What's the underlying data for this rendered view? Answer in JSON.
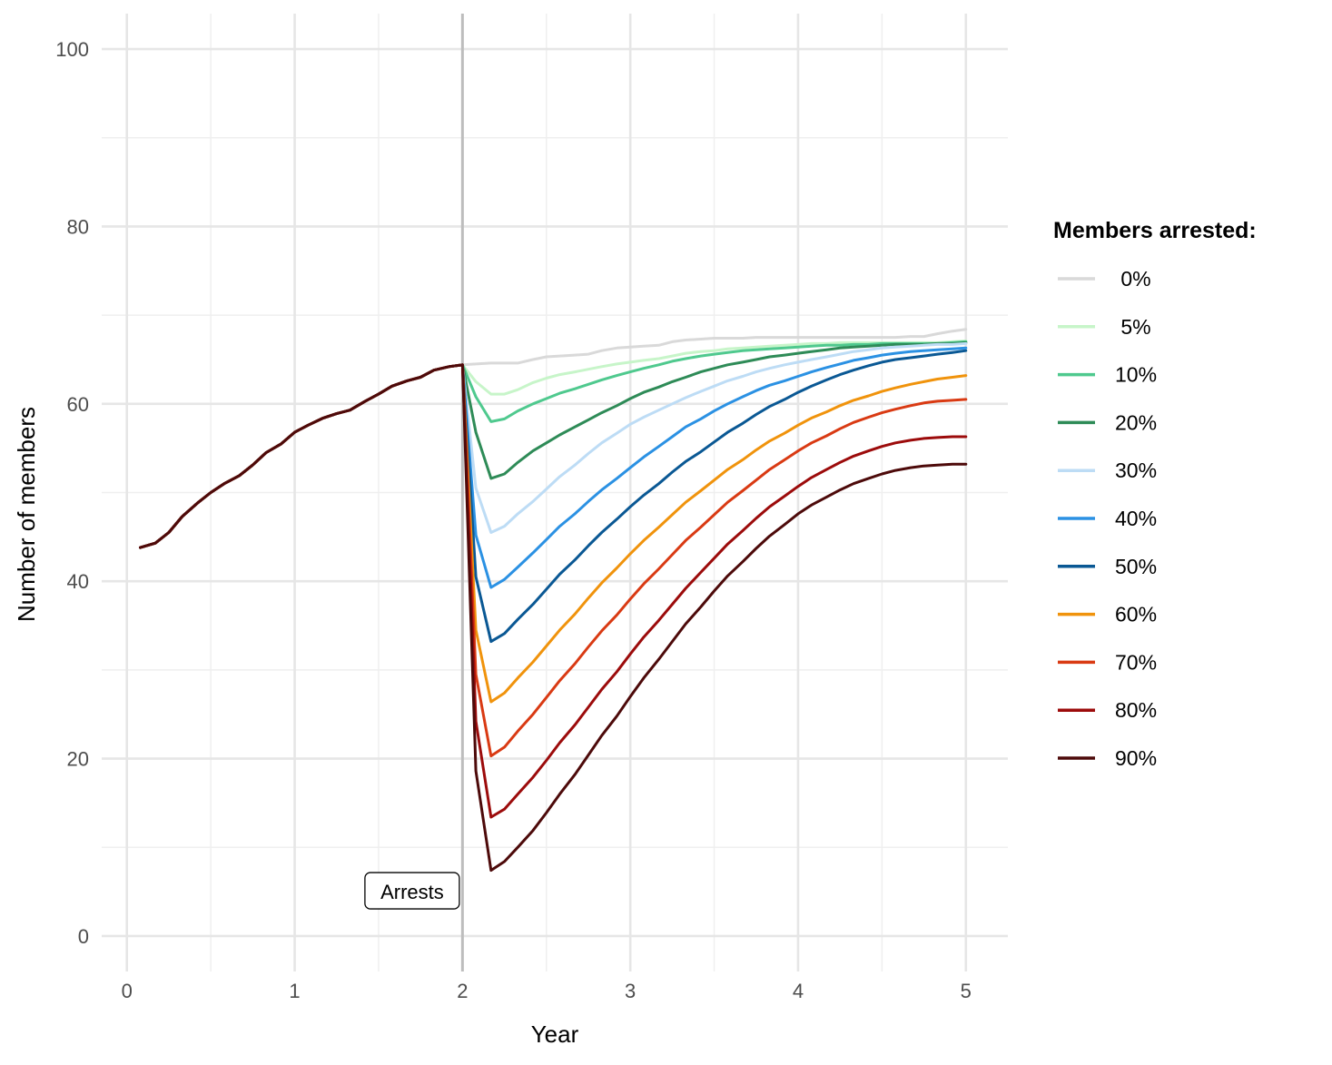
{
  "chart_data": {
    "type": "line",
    "title": "",
    "xlabel": "Year",
    "ylabel": "Number of members",
    "xlim": [
      -0.15,
      5.25
    ],
    "ylim": [
      -4,
      104
    ],
    "x_ticks": [
      0,
      1,
      2,
      3,
      4,
      5
    ],
    "y_ticks": [
      0,
      20,
      40,
      60,
      80,
      100
    ],
    "x_tick_labels": [
      "0",
      "1",
      "2",
      "3",
      "4",
      "5"
    ],
    "y_tick_labels": [
      "0",
      "20",
      "40",
      "60",
      "80",
      "100"
    ],
    "grid": true,
    "legend_position": "right",
    "legend_title": "Members arrested:",
    "vline": {
      "x": 2.0,
      "color": "#bdbdbd"
    },
    "annotation": {
      "text": "Arrests",
      "x": 1.7,
      "y": 5
    },
    "pre_arrest": {
      "x": [
        0.08,
        0.17,
        0.25,
        0.33,
        0.42,
        0.5,
        0.58,
        0.67,
        0.75,
        0.83,
        0.92,
        1.0,
        1.08,
        1.17,
        1.25,
        1.33,
        1.42,
        1.5,
        1.58,
        1.67,
        1.75,
        1.83,
        1.92,
        2.0
      ],
      "y": [
        43.8,
        44.3,
        45.5,
        47.3,
        48.8,
        50.0,
        51.0,
        51.9,
        53.1,
        54.5,
        55.5,
        56.8,
        57.6,
        58.4,
        58.9,
        59.3,
        60.3,
        61.1,
        62.0,
        62.6,
        63.0,
        63.8,
        64.2,
        64.4
      ]
    },
    "post_arrest_x": [
      2.0,
      2.08,
      2.17,
      2.25,
      2.33,
      2.42,
      2.5,
      2.58,
      2.67,
      2.75,
      2.83,
      2.92,
      3.0,
      3.08,
      3.17,
      3.25,
      3.33,
      3.42,
      3.5,
      3.58,
      3.67,
      3.75,
      3.83,
      3.92,
      4.0,
      4.08,
      4.17,
      4.25,
      4.33,
      4.42,
      4.5,
      4.58,
      4.67,
      4.75,
      4.83,
      4.92,
      5.0
    ],
    "series": [
      {
        "name": " 0%",
        "color": "#d9d9d9",
        "values": [
          64.4,
          64.5,
          64.6,
          64.6,
          64.6,
          65.0,
          65.3,
          65.4,
          65.5,
          65.6,
          66.0,
          66.3,
          66.4,
          66.5,
          66.6,
          67.0,
          67.2,
          67.3,
          67.4,
          67.4,
          67.4,
          67.5,
          67.5,
          67.5,
          67.5,
          67.5,
          67.5,
          67.5,
          67.5,
          67.5,
          67.5,
          67.5,
          67.6,
          67.6,
          67.9,
          68.2,
          68.4
        ]
      },
      {
        "name": " 5%",
        "color": "#c7f5c9",
        "values": [
          64.4,
          62.5,
          61.1,
          61.1,
          61.6,
          62.4,
          62.9,
          63.3,
          63.6,
          63.9,
          64.2,
          64.5,
          64.7,
          64.9,
          65.1,
          65.4,
          65.7,
          65.9,
          66.0,
          66.2,
          66.3,
          66.4,
          66.5,
          66.6,
          66.7,
          66.8,
          66.8,
          66.9,
          66.9,
          66.9,
          66.9,
          66.9,
          66.9,
          66.9,
          66.9,
          67.0,
          67.1
        ]
      },
      {
        "name": "10%",
        "color": "#4fc98e",
        "values": [
          64.4,
          60.8,
          58.0,
          58.3,
          59.2,
          60.0,
          60.6,
          61.2,
          61.7,
          62.2,
          62.7,
          63.2,
          63.6,
          64.0,
          64.4,
          64.8,
          65.1,
          65.4,
          65.6,
          65.8,
          66.0,
          66.1,
          66.2,
          66.3,
          66.4,
          66.5,
          66.6,
          66.6,
          66.7,
          66.7,
          66.8,
          66.8,
          66.8,
          66.8,
          66.8,
          66.9,
          67.0
        ]
      },
      {
        "name": "20%",
        "color": "#2e8b57",
        "values": [
          64.4,
          56.8,
          51.6,
          52.1,
          53.4,
          54.7,
          55.6,
          56.5,
          57.4,
          58.2,
          59.0,
          59.8,
          60.6,
          61.3,
          61.9,
          62.5,
          63.0,
          63.6,
          64.0,
          64.4,
          64.7,
          65.0,
          65.3,
          65.5,
          65.7,
          65.9,
          66.1,
          66.3,
          66.4,
          66.5,
          66.6,
          66.7,
          66.7,
          66.7,
          66.8,
          66.8,
          66.9
        ]
      },
      {
        "name": "30%",
        "color": "#bddcf5",
        "values": [
          64.4,
          50.5,
          45.5,
          46.2,
          47.6,
          49.0,
          50.4,
          51.8,
          53.1,
          54.4,
          55.6,
          56.7,
          57.7,
          58.5,
          59.3,
          60.0,
          60.7,
          61.4,
          62.0,
          62.6,
          63.1,
          63.6,
          64.0,
          64.4,
          64.7,
          65.0,
          65.3,
          65.6,
          65.9,
          66.1,
          66.3,
          66.4,
          66.5,
          66.6,
          66.7,
          66.7,
          66.8
        ]
      },
      {
        "name": "40%",
        "color": "#2b91e3",
        "values": [
          64.4,
          45.2,
          39.3,
          40.2,
          41.6,
          43.2,
          44.7,
          46.2,
          47.6,
          49.0,
          50.3,
          51.6,
          52.8,
          54.0,
          55.2,
          56.3,
          57.4,
          58.3,
          59.2,
          60.0,
          60.8,
          61.5,
          62.1,
          62.6,
          63.1,
          63.6,
          64.1,
          64.5,
          64.9,
          65.2,
          65.5,
          65.7,
          65.9,
          66.0,
          66.1,
          66.2,
          66.3
        ]
      },
      {
        "name": "50%",
        "color": "#0a5894",
        "values": [
          64.4,
          40.5,
          33.2,
          34.1,
          35.7,
          37.4,
          39.1,
          40.8,
          42.4,
          44.0,
          45.5,
          47.0,
          48.4,
          49.7,
          51.0,
          52.3,
          53.5,
          54.6,
          55.7,
          56.8,
          57.8,
          58.8,
          59.7,
          60.5,
          61.3,
          62.0,
          62.7,
          63.3,
          63.8,
          64.3,
          64.7,
          65.0,
          65.2,
          65.4,
          65.6,
          65.8,
          66.0
        ]
      },
      {
        "name": "60%",
        "color": "#f0930c",
        "values": [
          64.4,
          34.5,
          26.4,
          27.4,
          29.1,
          30.9,
          32.7,
          34.5,
          36.3,
          38.1,
          39.8,
          41.5,
          43.1,
          44.6,
          46.1,
          47.5,
          48.9,
          50.2,
          51.4,
          52.6,
          53.7,
          54.8,
          55.8,
          56.7,
          57.6,
          58.4,
          59.1,
          59.8,
          60.4,
          60.9,
          61.4,
          61.8,
          62.2,
          62.5,
          62.8,
          63.0,
          63.2
        ]
      },
      {
        "name": "70%",
        "color": "#d93a13",
        "values": [
          64.4,
          29.5,
          20.3,
          21.3,
          23.1,
          25.0,
          26.9,
          28.8,
          30.7,
          32.6,
          34.4,
          36.2,
          38.0,
          39.7,
          41.4,
          43.0,
          44.6,
          46.1,
          47.5,
          48.9,
          50.2,
          51.4,
          52.6,
          53.7,
          54.7,
          55.6,
          56.4,
          57.2,
          57.9,
          58.5,
          59.0,
          59.4,
          59.8,
          60.1,
          60.3,
          60.4,
          60.5
        ]
      },
      {
        "name": "80%",
        "color": "#9c0b0b",
        "values": [
          64.4,
          24.2,
          13.4,
          14.3,
          16.0,
          17.9,
          19.8,
          21.8,
          23.8,
          25.8,
          27.8,
          29.8,
          31.8,
          33.7,
          35.6,
          37.4,
          39.2,
          41.0,
          42.6,
          44.2,
          45.7,
          47.1,
          48.4,
          49.6,
          50.7,
          51.7,
          52.6,
          53.4,
          54.1,
          54.7,
          55.2,
          55.6,
          55.9,
          56.1,
          56.2,
          56.3,
          56.3
        ]
      },
      {
        "name": "90%",
        "color": "#4d0a0a",
        "values": [
          64.4,
          18.6,
          7.4,
          8.4,
          10.0,
          11.9,
          13.9,
          16.0,
          18.2,
          20.4,
          22.6,
          24.8,
          27.0,
          29.1,
          31.2,
          33.2,
          35.2,
          37.1,
          38.9,
          40.6,
          42.2,
          43.7,
          45.1,
          46.4,
          47.6,
          48.6,
          49.5,
          50.3,
          51.0,
          51.6,
          52.1,
          52.5,
          52.8,
          53.0,
          53.1,
          53.2,
          53.2
        ]
      }
    ]
  }
}
